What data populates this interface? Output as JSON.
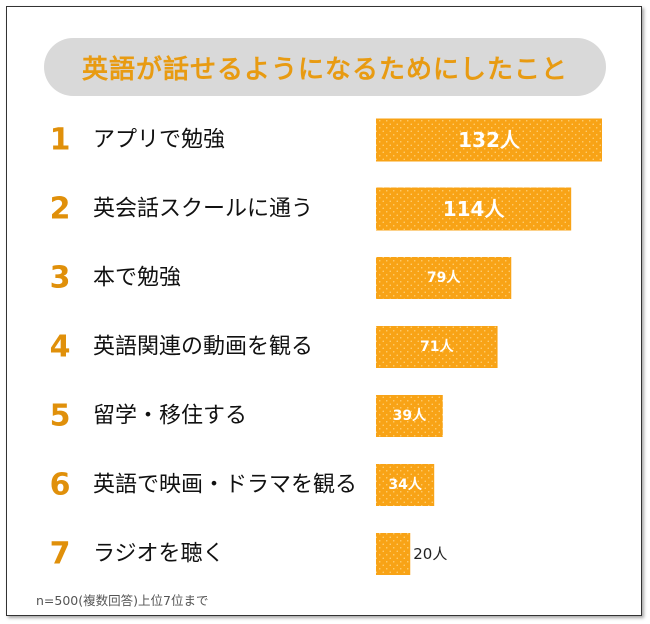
{
  "title": "英語が話せるようになるためにしたこと",
  "footnote": "n=500(複数回答)上位7位まで",
  "colors": {
    "bar": "#f8a316",
    "bar_dot": "#ffd27a",
    "rank": "#e0900a",
    "title": "#e89b12",
    "pill": "#d9d9d9"
  },
  "chart_data": {
    "type": "bar",
    "orientation": "horizontal",
    "unit": "人",
    "ranks": [
      "1",
      "2",
      "3",
      "4",
      "5",
      "6",
      "7"
    ],
    "categories": [
      "アプリで勉強",
      "英会話スクールに通う",
      "本で勉強",
      "英語関連の動画を観る",
      "留学・移住する",
      "英語で映画・ドラマを観る",
      "ラジオを聴く"
    ],
    "values": [
      132,
      114,
      79,
      71,
      39,
      34,
      20
    ],
    "value_labels": [
      "132人",
      "114人",
      "79人",
      "71人",
      "39人",
      "34人",
      "20人"
    ]
  }
}
